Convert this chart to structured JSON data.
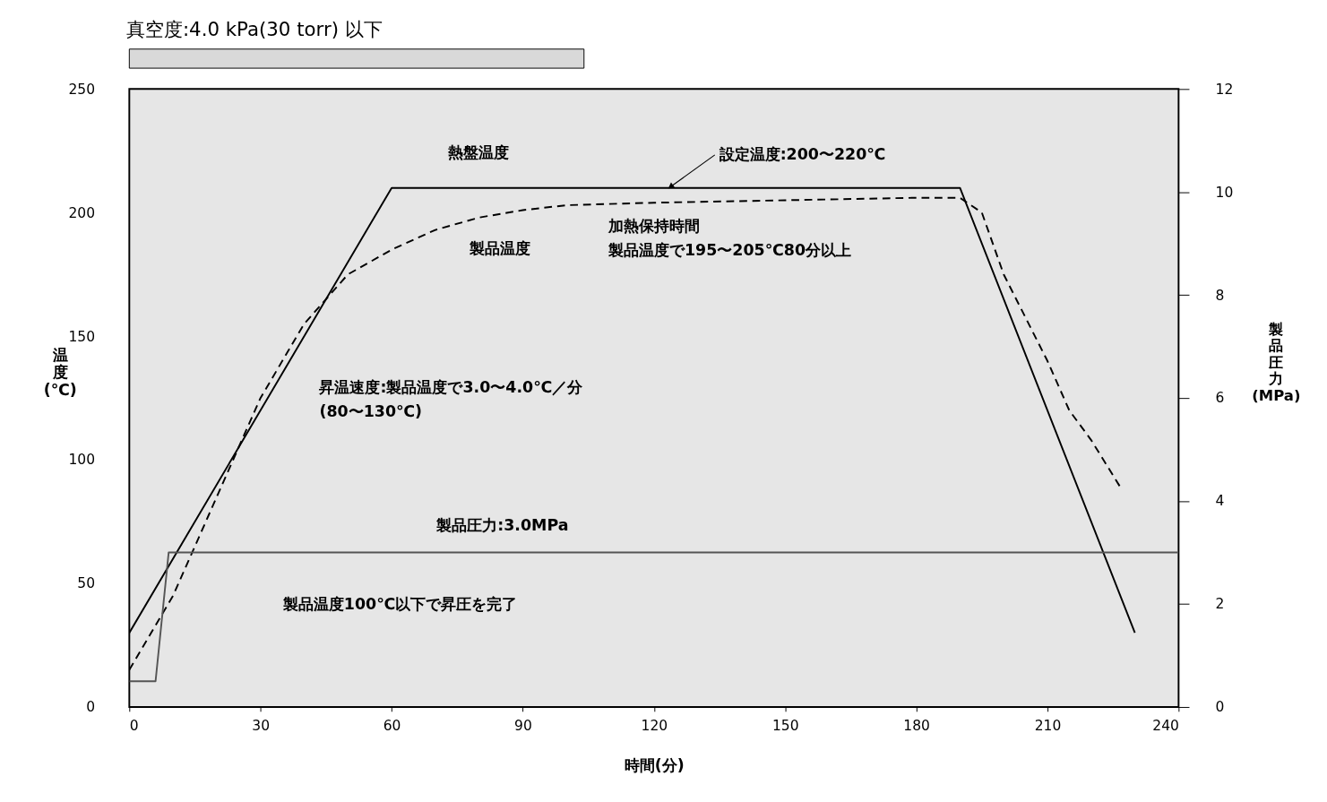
{
  "chart_data": [
    {
      "type": "bar",
      "orientation": "horizontal",
      "title": "真空度:4.0 kPa(30 torr) 以下",
      "categories": [
        null
      ],
      "base": [
        0
      ],
      "values": [
        104
      ],
      "color": "#d9d9d9",
      "xlim": [
        0,
        240
      ],
      "xticks": [
        0,
        30,
        60,
        90,
        120,
        150,
        180,
        210,
        240
      ],
      "tick_labels": false,
      "grid": false
    },
    {
      "type": "line",
      "xlabel": "時間(分)",
      "ylabel": "温度(℃)",
      "y2label": "製品圧力(MPa)",
      "xlim": [
        0,
        240
      ],
      "xticks": [
        0,
        30,
        60,
        90,
        120,
        150,
        180,
        210,
        240
      ],
      "ylim": [
        0,
        250
      ],
      "yticks": [
        0,
        50,
        100,
        150,
        200,
        250
      ],
      "y2lim": [
        0,
        12
      ],
      "y2ticks": [
        0,
        2,
        4,
        6,
        8,
        10,
        12
      ],
      "grid": false,
      "marker": "none",
      "series": [
        {
          "name": "熱盤温度",
          "color": "#000000",
          "line_style": "solid",
          "x": [
            0,
            60,
            190,
            230
          ],
          "values": [
            30,
            210,
            210,
            30
          ]
        },
        {
          "name": "製品温度",
          "color": "#000000",
          "line_style": "dashed",
          "x": [
            0,
            10,
            20,
            30,
            40,
            50,
            60,
            70,
            80,
            90,
            100,
            120,
            150,
            180,
            190,
            195,
            200,
            210,
            215,
            220,
            227
          ],
          "values": [
            15,
            45,
            85,
            125,
            155,
            175,
            185,
            193,
            198,
            201,
            203,
            204,
            205,
            206,
            206,
            200,
            175,
            140,
            120,
            108,
            88
          ]
        },
        {
          "color": "#555555",
          "line_style": "solid",
          "axis": "y2",
          "x": [
            0,
            6,
            9,
            240
          ],
          "values": [
            0.5,
            0.5,
            3.0,
            3.0
          ]
        }
      ],
      "annotations": [
        {
          "text": "設定温度:200〜220℃",
          "x": 124,
          "y": 210
        },
        "加熱保持時間",
        "製品温度で195〜205℃80分以上",
        "昇温速度:製品温度で3.0〜4.0℃／分",
        "(80〜130℃)",
        "製品圧力:3.0MPa",
        "製品温度100℃以下で昇圧を完了"
      ]
    }
  ]
}
